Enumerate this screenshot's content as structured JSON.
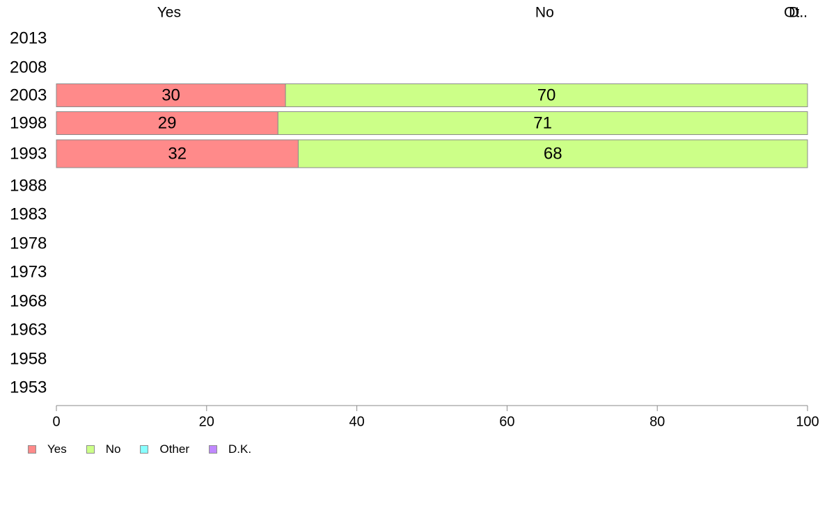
{
  "chart_data": {
    "type": "bar",
    "orientation": "horizontal",
    "stacked": true,
    "categories": [
      "2013",
      "2008",
      "2003",
      "1998",
      "1993",
      "1988",
      "1983",
      "1978",
      "1973",
      "1968",
      "1963",
      "1958",
      "1953"
    ],
    "series": [
      {
        "name": "Yes",
        "color": "#ff8a8a",
        "values": [
          null,
          null,
          30.5,
          29.5,
          32.2,
          null,
          null,
          null,
          null,
          null,
          null,
          null,
          null
        ],
        "labels": [
          "",
          "",
          "30",
          "29",
          "32",
          "",
          "",
          "",
          "",
          "",
          "",
          "",
          ""
        ]
      },
      {
        "name": "No",
        "color": "#ccff88",
        "values": [
          null,
          null,
          69.5,
          70.5,
          67.8,
          null,
          null,
          null,
          null,
          null,
          null,
          null,
          null
        ],
        "labels": [
          "",
          "",
          "70",
          "71",
          "68",
          "",
          "",
          "",
          "",
          "",
          "",
          "",
          ""
        ]
      },
      {
        "name": "Other",
        "color": "#88ffff",
        "values": [
          null,
          null,
          0,
          0,
          0,
          null,
          null,
          null,
          null,
          null,
          null,
          null,
          null
        ],
        "labels": [
          "",
          "",
          "",
          "",
          "",
          "",
          "",
          "",
          "",
          "",
          "",
          "",
          ""
        ]
      },
      {
        "name": "D.K.",
        "color": "#c088ff",
        "values": [
          null,
          null,
          0,
          0,
          0,
          null,
          null,
          null,
          null,
          null,
          null,
          null,
          null
        ],
        "labels": [
          "",
          "",
          "",
          "",
          "",
          "",
          "",
          "",
          "",
          "",
          "",
          "",
          ""
        ]
      }
    ],
    "top_labels": [
      {
        "text": "Yes",
        "x": 15
      },
      {
        "text": "No",
        "x": 65
      },
      {
        "text": "Ot..",
        "x": 100
      },
      {
        "text": "D..",
        "x": 100
      }
    ],
    "xlim": [
      0,
      100
    ],
    "xticks": [
      0,
      20,
      40,
      60,
      80,
      100
    ],
    "xlabel": "",
    "ylabel": "",
    "title": "",
    "grid": false,
    "legend_position": "bottom-left"
  }
}
